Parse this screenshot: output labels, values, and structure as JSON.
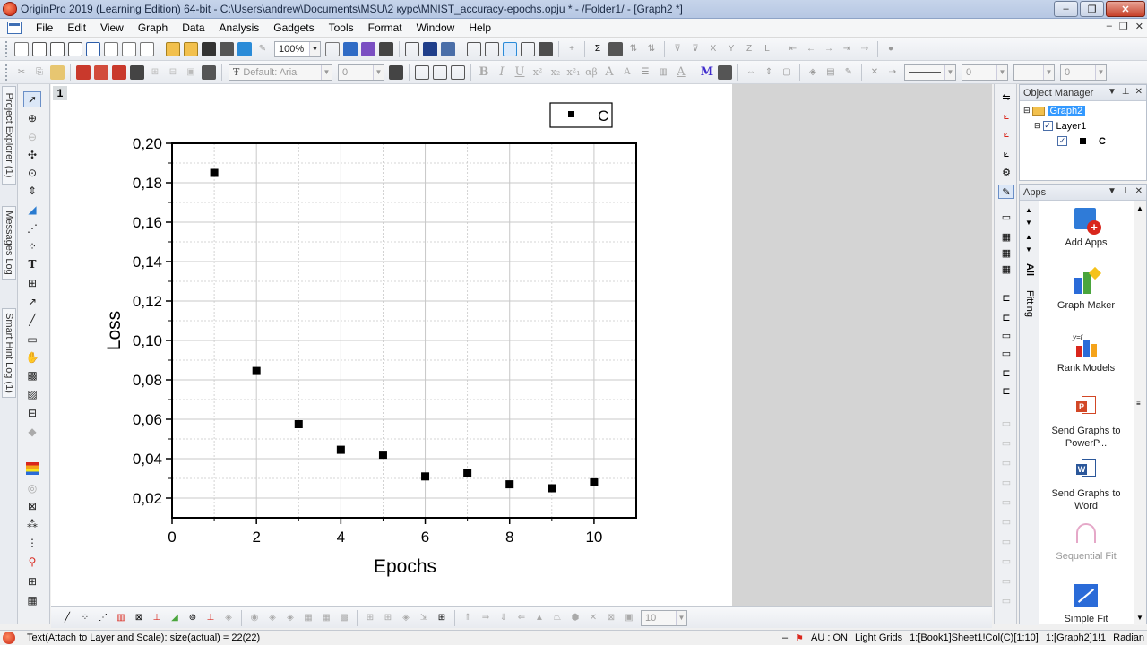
{
  "window": {
    "title": "OriginPro 2019 (Learning Edition) 64-bit - C:\\Users\\andrew\\Documents\\MSU\\2 курс\\MNIST_accuracy-epochs.opju * - /Folder1/ - [Graph2 *]",
    "minimize": "–",
    "restore": "❐",
    "close": "✕"
  },
  "menu": [
    "File",
    "Edit",
    "View",
    "Graph",
    "Data",
    "Analysis",
    "Gadgets",
    "Tools",
    "Format",
    "Window",
    "Help"
  ],
  "toolbar": {
    "zoom": "100%",
    "font": "Default: Arial",
    "font_size": "0",
    "line_width": "0",
    "pattern_size": "0"
  },
  "left_tabs": [
    "Project Explorer (1)",
    "Messages Log",
    "Smart Hint Log (1)"
  ],
  "layer_number": "1",
  "chart_data": {
    "type": "scatter",
    "x": [
      1,
      2,
      3,
      4,
      5,
      6,
      7,
      8,
      9,
      10
    ],
    "y": [
      0.185,
      0.0845,
      0.0575,
      0.0445,
      0.042,
      0.031,
      0.0325,
      0.027,
      0.025,
      0.028
    ],
    "xlabel": "Epochs",
    "ylabel": "Loss",
    "xlim": [
      0,
      11
    ],
    "ylim": [
      0.01,
      0.2
    ],
    "x_ticks": [
      "0",
      "2",
      "4",
      "6",
      "8",
      "10"
    ],
    "y_ticks": [
      "0,02",
      "0,04",
      "0,06",
      "0,08",
      "0,10",
      "0,12",
      "0,14",
      "0,16",
      "0,18",
      "0,20"
    ],
    "legend": {
      "label": "C",
      "placement": "top-right"
    },
    "grid": true,
    "marker": "square",
    "marker_color": "#000000"
  },
  "object_manager": {
    "title": "Object Manager",
    "graph": "Graph2",
    "layer": "Layer1",
    "plot": "C"
  },
  "apps": {
    "title": "Apps",
    "tabs": [
      "All",
      "Fitting"
    ],
    "items": [
      {
        "label": "Add Apps"
      },
      {
        "label": "Graph Maker"
      },
      {
        "label": "Rank Models"
      },
      {
        "label": "Send Graphs to PowerP..."
      },
      {
        "label": "Send Graphs to Word"
      },
      {
        "label": "Sequential Fit"
      },
      {
        "label": "Simple Fit"
      }
    ]
  },
  "bottom_toolbar": {
    "size_value": "10"
  },
  "status": {
    "left": "Text(Attach to Layer and Scale): size(actual) = 22(22)",
    "au": "AU : ON",
    "theme": "Light Grids",
    "cell": "1:[Book1]Sheet1!Col(C)[1:10]",
    "layer": "1:[Graph2]1!1",
    "angle": "Radian"
  },
  "colors": {
    "selection": "#3399ff",
    "accent_red": "#d9261c",
    "gridline": "#c8c8c8"
  }
}
